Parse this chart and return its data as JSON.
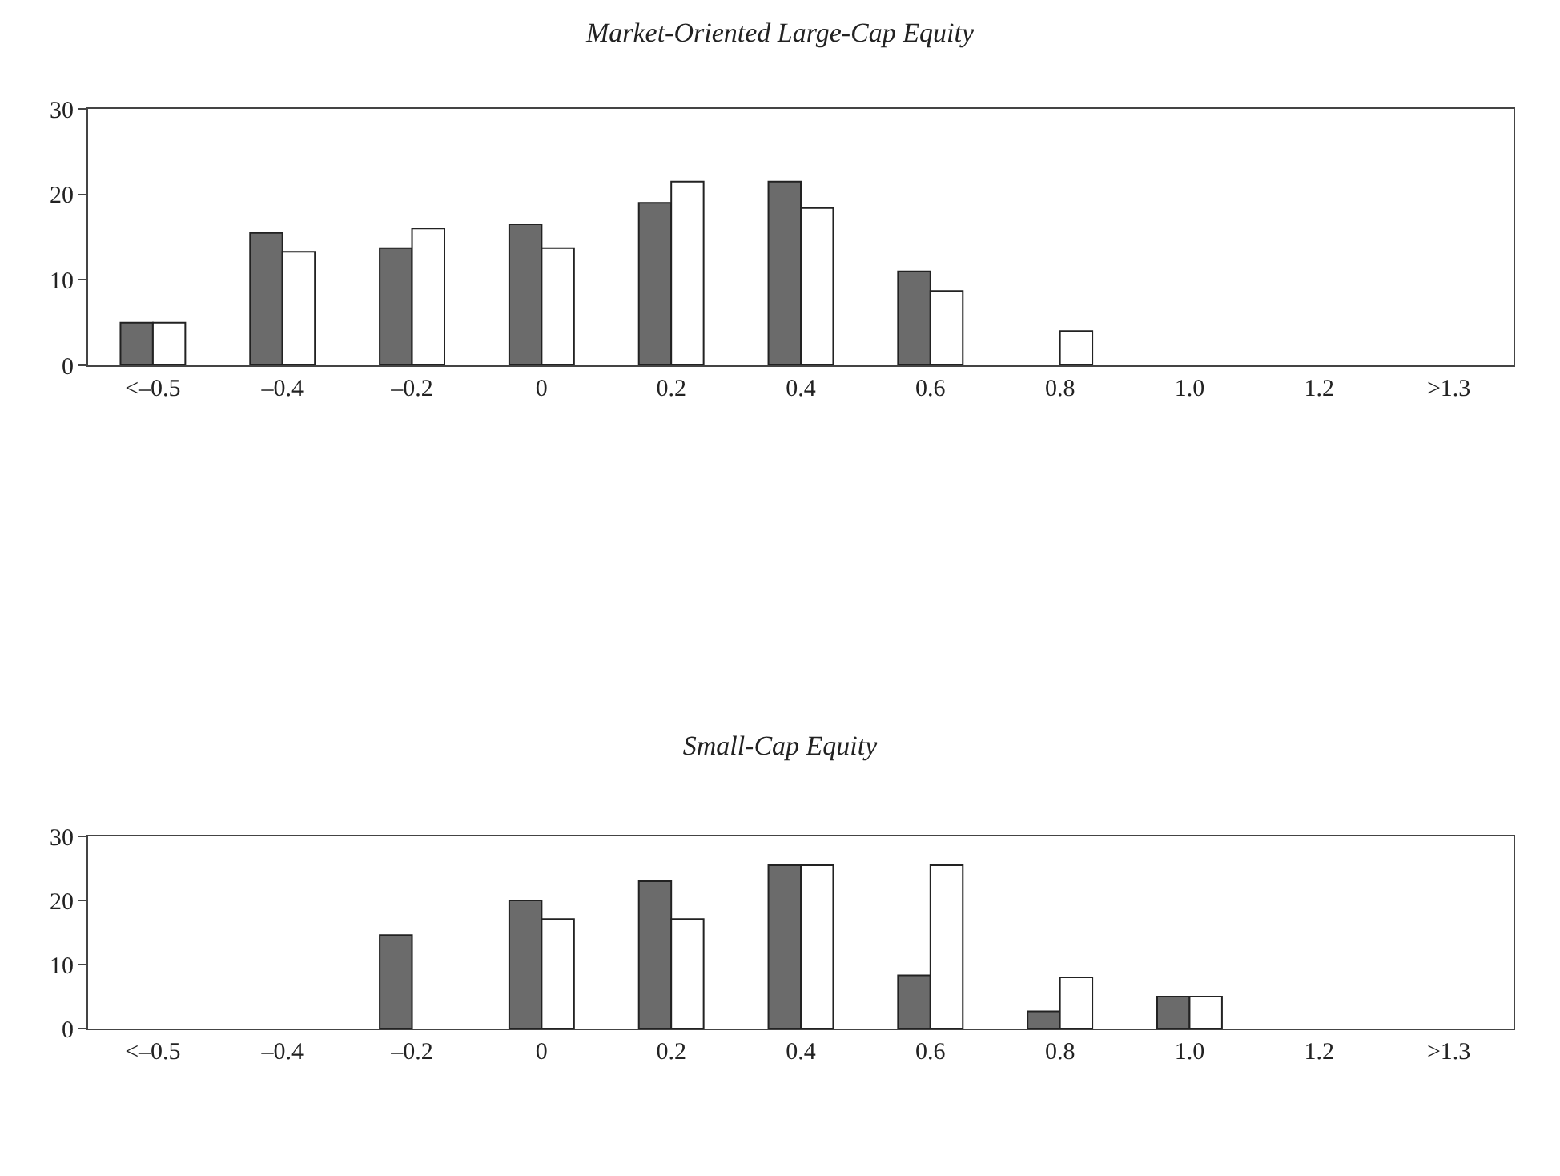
{
  "chart_data": [
    {
      "type": "bar",
      "title": "Market-Oriented Large-Cap Equity",
      "categories": [
        "<–0.5",
        "–0.4",
        "–0.2",
        "0",
        "0.2",
        "0.4",
        "0.6",
        "0.8",
        "1.0",
        "1.2",
        ">1.3"
      ],
      "ylim": [
        0,
        30
      ],
      "yticks": [
        0,
        10,
        20,
        30
      ],
      "series": [
        {
          "color": "#6b6b6b",
          "values": [
            5,
            15.5,
            13.7,
            16.5,
            19,
            21.5,
            11,
            null,
            null,
            null,
            null
          ]
        },
        {
          "color": "#ffffff",
          "values": [
            5,
            13.3,
            16,
            13.7,
            21.5,
            18.4,
            8.7,
            4,
            null,
            null,
            null
          ]
        }
      ]
    },
    {
      "type": "bar",
      "title": "Small-Cap Equity",
      "categories": [
        "<–0.5",
        "–0.4",
        "–0.2",
        "0",
        "0.2",
        "0.4",
        "0.6",
        "0.8",
        "1.0",
        "1.2",
        ">1.3"
      ],
      "ylim": [
        0,
        30
      ],
      "yticks": [
        0,
        10,
        20,
        30
      ],
      "series": [
        {
          "color": "#6b6b6b",
          "values": [
            null,
            null,
            14.6,
            20,
            23,
            25.5,
            8.3,
            2.7,
            5,
            null,
            null
          ]
        },
        {
          "color": "#ffffff",
          "values": [
            null,
            null,
            null,
            17.1,
            17.1,
            25.5,
            25.5,
            8,
            5,
            null,
            null
          ]
        }
      ]
    }
  ]
}
